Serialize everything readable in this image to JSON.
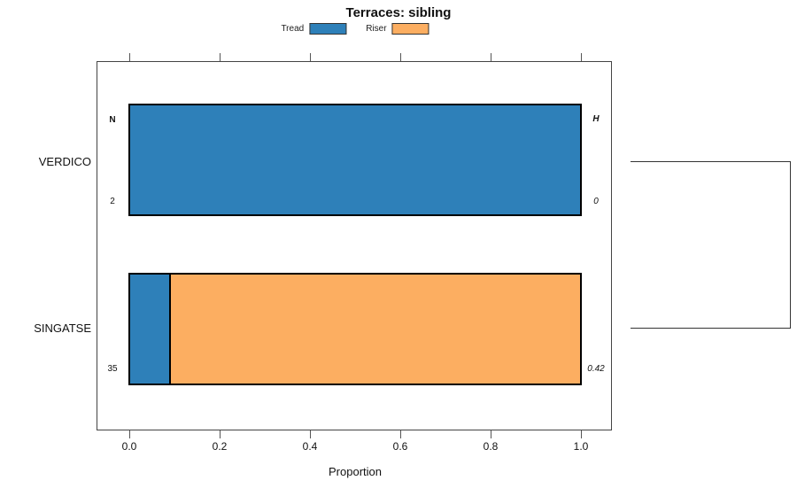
{
  "chart_data": {
    "type": "bar",
    "orientation": "horizontal",
    "stacked": true,
    "title": "Terraces: sibling",
    "xlabel": "Proportion",
    "xlim": [
      0.0,
      1.0
    ],
    "xticks": [
      0.0,
      0.2,
      0.4,
      0.6,
      0.8,
      1.0
    ],
    "xtick_labels": [
      "0.0",
      "0.2",
      "0.4",
      "0.6",
      "0.8",
      "1.0"
    ],
    "categories": [
      "VERDICO",
      "SINGATSE"
    ],
    "series": [
      {
        "name": "Tread",
        "color": "#2E80B9",
        "values": [
          1.0,
          0.086
        ]
      },
      {
        "name": "Riser",
        "color": "#FCAE61",
        "values": [
          0.0,
          0.914
        ]
      }
    ],
    "row_annotations": {
      "left_header": "N",
      "right_header": "H",
      "n_values": [
        "2",
        "35"
      ],
      "h_values": [
        "0",
        "0.42"
      ]
    },
    "legend_position": "top-center",
    "grid": false,
    "frame": true,
    "dendrogram_bracket": {
      "joins": [
        "VERDICO",
        "SINGATSE"
      ],
      "side": "right"
    },
    "colors": {
      "tread": "#2E80B9",
      "riser": "#FCAE61",
      "bar_border": "#000000",
      "frame_border": "#444444",
      "background": "#ffffff"
    }
  }
}
